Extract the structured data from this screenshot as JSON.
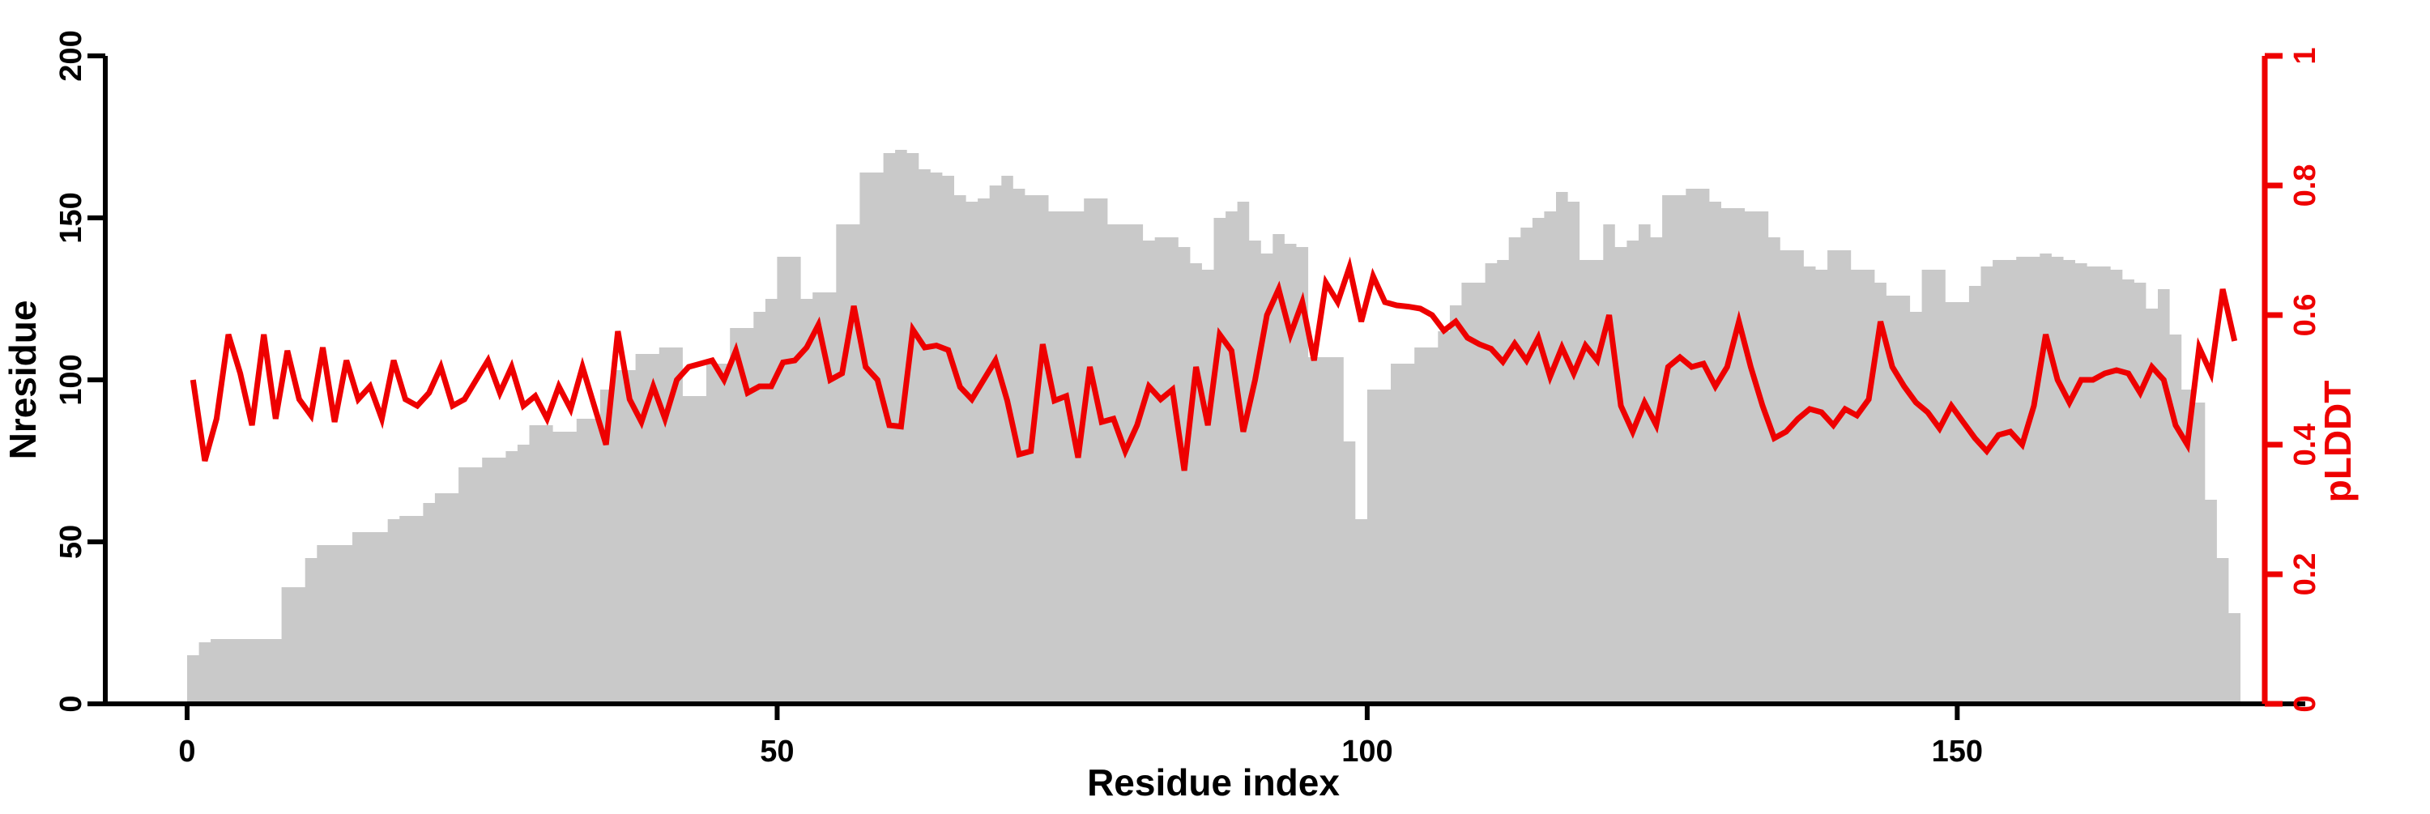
{
  "chart_data": {
    "type": "bar",
    "title": "",
    "xlabel": "Residue index",
    "ylabel_left": "Nresidue",
    "ylabel_right": "pLDDT",
    "x_ticks": [
      0,
      50,
      100,
      150
    ],
    "yticks_left": [
      0,
      50,
      100,
      150,
      200
    ],
    "yticks_right": [
      "0",
      "0.2",
      "0.4",
      "0.6",
      "0.8",
      "1"
    ],
    "ylim_left": [
      0,
      200
    ],
    "ylim_right": [
      0,
      1
    ],
    "xlim": [
      0,
      174
    ],
    "grid": false,
    "legend_position": "none",
    "colors": {
      "bar": "#c9c9c9",
      "line": "#ee0000",
      "axis": "#000000",
      "axis_right": "#ee0000"
    },
    "series": [
      {
        "name": "Nresidue",
        "type": "bar",
        "axis": "left",
        "values": [
          15,
          19,
          20,
          20,
          20,
          20,
          20,
          20,
          36,
          36,
          45,
          49,
          49,
          49,
          53,
          53,
          53,
          57,
          58,
          58,
          62,
          65,
          65,
          73,
          73,
          76,
          76,
          78,
          80,
          86,
          86,
          84,
          84,
          88,
          88,
          97,
          103,
          103,
          108,
          108,
          110,
          110,
          95,
          95,
          105,
          105,
          116,
          116,
          121,
          125,
          138,
          138,
          125,
          127,
          127,
          148,
          148,
          164,
          164,
          170,
          171,
          170,
          165,
          164,
          163,
          157,
          155,
          156,
          160,
          163,
          159,
          157,
          157,
          152,
          152,
          152,
          156,
          156,
          148,
          148,
          148,
          143,
          144,
          144,
          141,
          136,
          134,
          150,
          152,
          155,
          143,
          139,
          145,
          142,
          141,
          107,
          107,
          107,
          81,
          57,
          97,
          97,
          105,
          105,
          110,
          110,
          115,
          123,
          130,
          130,
          136,
          137,
          144,
          147,
          150,
          152,
          158,
          155,
          137,
          137,
          148,
          141,
          143,
          148,
          144,
          157,
          157,
          159,
          159,
          155,
          153,
          153,
          152,
          152,
          144,
          140,
          140,
          135,
          134,
          140,
          140,
          134,
          134,
          130,
          126,
          126,
          121,
          134,
          134,
          124,
          124,
          129,
          135,
          137,
          137,
          138,
          138,
          139,
          138,
          137,
          136,
          135,
          135,
          134,
          131,
          130,
          122,
          128,
          114,
          97,
          93,
          63,
          45,
          28
        ]
      },
      {
        "name": "pLDDT",
        "type": "line",
        "axis": "right",
        "values": [
          0.5,
          0.375,
          0.44,
          0.57,
          0.51,
          0.43,
          0.57,
          0.44,
          0.545,
          0.47,
          0.445,
          0.55,
          0.435,
          0.53,
          0.47,
          0.49,
          0.44,
          0.53,
          0.47,
          0.46,
          0.48,
          0.52,
          0.46,
          0.47,
          0.5,
          0.53,
          0.48,
          0.52,
          0.46,
          0.475,
          0.44,
          0.49,
          0.455,
          0.52,
          0.46,
          0.4,
          0.575,
          0.47,
          0.435,
          0.49,
          0.44,
          0.5,
          0.52,
          0.525,
          0.53,
          0.5,
          0.545,
          0.48,
          0.49,
          0.49,
          0.527,
          0.53,
          0.55,
          0.585,
          0.5,
          0.51,
          0.614,
          0.52,
          0.5,
          0.43,
          0.428,
          0.5775,
          0.55,
          0.553,
          0.546,
          0.489,
          0.47,
          0.5,
          0.53,
          0.468,
          0.385,
          0.39,
          0.555,
          0.468,
          0.475,
          0.38,
          0.52,
          0.435,
          0.44,
          0.39,
          0.43,
          0.49,
          0.47,
          0.485,
          0.36,
          0.52,
          0.43,
          0.57,
          0.545,
          0.42,
          0.5,
          0.6,
          0.64,
          0.57,
          0.62,
          0.53,
          0.65,
          0.62,
          0.674,
          0.59,
          0.66,
          0.62,
          0.615,
          0.613,
          0.61,
          0.6,
          0.576,
          0.59,
          0.565,
          0.555,
          0.548,
          0.528,
          0.556,
          0.53,
          0.565,
          0.505,
          0.55,
          0.51,
          0.553,
          0.53,
          0.6,
          0.46,
          0.42,
          0.465,
          0.43,
          0.52,
          0.535,
          0.52,
          0.525,
          0.49,
          0.52,
          0.59,
          0.52,
          0.46,
          0.41,
          0.42,
          0.44,
          0.455,
          0.45,
          0.43,
          0.455,
          0.445,
          0.47,
          0.59,
          0.52,
          0.49,
          0.465,
          0.45,
          0.425,
          0.46,
          0.435,
          0.41,
          0.39,
          0.415,
          0.42,
          0.4,
          0.46,
          0.57,
          0.5,
          0.465,
          0.5,
          0.5,
          0.51,
          0.515,
          0.51,
          0.48,
          0.52,
          0.5,
          0.43,
          0.4,
          0.55,
          0.51,
          0.64,
          0.56
        ]
      }
    ]
  }
}
